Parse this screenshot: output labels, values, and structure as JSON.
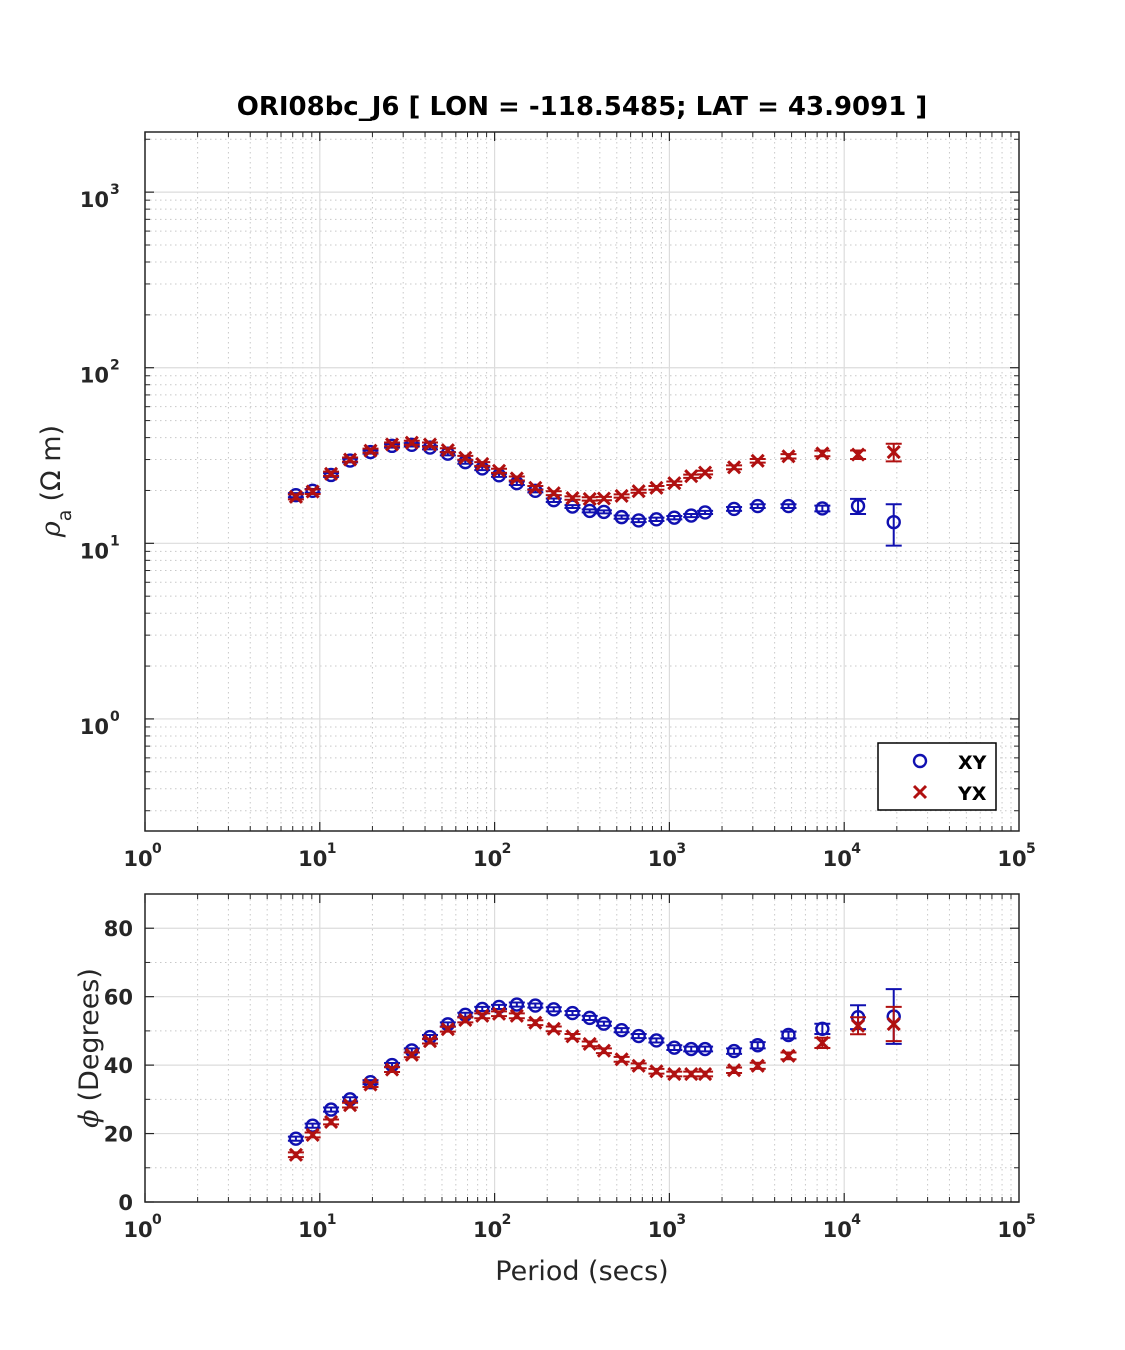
{
  "chart_data": [
    {
      "type": "scatter",
      "title": "ORI08bc_J6 [ LON = -118.5485; LAT = 43.9091 ]",
      "xlabel": "",
      "ylabel_symbol": "ρ",
      "ylabel_sub": "a",
      "ylabel_unit": "(Ω m)",
      "xscale": "log",
      "yscale": "log",
      "xlim": [
        1,
        100000
      ],
      "ylim": [
        0.23,
        2200
      ],
      "x_ticks": [
        {
          "base": "10",
          "exp": "0",
          "value": 1
        },
        {
          "base": "10",
          "exp": "1",
          "value": 10
        },
        {
          "base": "10",
          "exp": "2",
          "value": 100
        },
        {
          "base": "10",
          "exp": "3",
          "value": 1000
        },
        {
          "base": "10",
          "exp": "4",
          "value": 10000
        },
        {
          "base": "10",
          "exp": "5",
          "value": 100000
        }
      ],
      "y_ticks": [
        {
          "base": "10",
          "exp": "0",
          "value": 1
        },
        {
          "base": "10",
          "exp": "1",
          "value": 10
        },
        {
          "base": "10",
          "exp": "2",
          "value": 100
        },
        {
          "base": "10",
          "exp": "3",
          "value": 1000
        }
      ],
      "grid": true,
      "legend_position": "bottom-right",
      "series": [
        {
          "name": "XY",
          "marker": "circle",
          "color": "#1010b0",
          "x": [
            7.3,
            9.1,
            11.6,
            14.9,
            19.5,
            25.9,
            33.6,
            42.7,
            54,
            68,
            85,
            106,
            134,
            171,
            218,
            279,
            350,
            422,
            533,
            667,
            843,
            1067,
            1333,
            1600,
            2344,
            3200,
            4800,
            7500,
            12000,
            19200
          ],
          "y": [
            18.8,
            19.9,
            24.5,
            29.6,
            33.1,
            35.9,
            36.4,
            35.1,
            32.4,
            29,
            26.7,
            24.4,
            22,
            19.9,
            17.6,
            16.2,
            15.3,
            15.1,
            14.1,
            13.5,
            13.7,
            14,
            14.4,
            15,
            15.7,
            16.3,
            16.3,
            15.8,
            16.3,
            13.2
          ],
          "err": [
            0.5,
            0.5,
            0.6,
            0.7,
            0.7,
            0.8,
            0.8,
            0.8,
            0.7,
            0.6,
            0.6,
            0.5,
            0.5,
            0.4,
            0.4,
            0.3,
            0.3,
            0.3,
            0.3,
            0.3,
            0.3,
            0.3,
            0.3,
            0.3,
            0.4,
            0.4,
            0.4,
            0.6,
            1.6,
            3.5
          ]
        },
        {
          "name": "YX",
          "marker": "x",
          "color": "#b01010",
          "x": [
            7.3,
            9.1,
            11.6,
            14.9,
            19.5,
            25.9,
            33.6,
            42.7,
            54,
            68,
            85,
            106,
            134,
            171,
            218,
            279,
            350,
            422,
            533,
            667,
            843,
            1067,
            1333,
            1600,
            2344,
            3200,
            4800,
            7500,
            12000,
            19200
          ],
          "y": [
            18.4,
            19.7,
            24.9,
            30,
            33.7,
            36.6,
            37.4,
            36.5,
            33.9,
            30.7,
            28.3,
            25.9,
            23.4,
            20.7,
            19.3,
            18.1,
            17.9,
            18,
            18.6,
            19.8,
            20.7,
            22,
            24.1,
            25.3,
            27.1,
            29.5,
            31.3,
            32.5,
            32,
            33.1
          ],
          "err": [
            0.6,
            0.6,
            0.7,
            0.8,
            0.9,
            0.9,
            1,
            1,
            0.9,
            0.8,
            0.7,
            0.7,
            0.6,
            0.5,
            0.5,
            0.4,
            0.4,
            0.4,
            0.4,
            0.4,
            0.5,
            0.5,
            0.5,
            0.6,
            0.7,
            0.7,
            0.9,
            1.2,
            1.8,
            3.8
          ]
        }
      ]
    },
    {
      "type": "scatter",
      "title": "",
      "xlabel": "Period (secs)",
      "ylabel_symbol": "ϕ",
      "ylabel_unit": "(Degrees)",
      "xscale": "log",
      "yscale": "linear",
      "xlim": [
        1,
        100000
      ],
      "ylim": [
        0,
        90
      ],
      "x_ticks": [
        {
          "base": "10",
          "exp": "0",
          "value": 1
        },
        {
          "base": "10",
          "exp": "1",
          "value": 10
        },
        {
          "base": "10",
          "exp": "2",
          "value": 100
        },
        {
          "base": "10",
          "exp": "3",
          "value": 1000
        },
        {
          "base": "10",
          "exp": "4",
          "value": 10000
        },
        {
          "base": "10",
          "exp": "5",
          "value": 100000
        }
      ],
      "y_ticks": [
        {
          "label": "0",
          "value": 0
        },
        {
          "label": "20",
          "value": 20
        },
        {
          "label": "40",
          "value": 40
        },
        {
          "label": "60",
          "value": 60
        },
        {
          "label": "80",
          "value": 80
        }
      ],
      "grid": true,
      "series": [
        {
          "name": "XY",
          "marker": "circle",
          "color": "#1010b0",
          "x": [
            7.3,
            9.1,
            11.6,
            14.9,
            19.5,
            25.9,
            33.6,
            42.7,
            54,
            68,
            85,
            106,
            134,
            171,
            218,
            279,
            350,
            422,
            533,
            667,
            843,
            1067,
            1333,
            1600,
            2344,
            3200,
            4800,
            7500,
            12000,
            19200
          ],
          "y": [
            18.5,
            22.3,
            27,
            30,
            35,
            40,
            44.3,
            48.2,
            51.9,
            54.7,
            56.4,
            57,
            57.7,
            57.4,
            56.3,
            55.2,
            53.8,
            52.1,
            50.2,
            48.5,
            47.2,
            45.1,
            44.7,
            44.7,
            44.1,
            45.8,
            48.8,
            50.6,
            54,
            54.2
          ],
          "err": [
            0.6,
            0.6,
            0.6,
            0.6,
            0.6,
            0.6,
            0.6,
            0.6,
            0.6,
            0.6,
            0.6,
            0.6,
            0.6,
            0.6,
            0.6,
            0.6,
            0.6,
            0.6,
            0.6,
            0.6,
            0.6,
            0.7,
            0.7,
            0.7,
            0.8,
            0.9,
            1,
            1.5,
            3.5,
            8
          ]
        },
        {
          "name": "YX",
          "marker": "x",
          "color": "#b01010",
          "x": [
            7.3,
            9.1,
            11.6,
            14.9,
            19.5,
            25.9,
            33.6,
            42.7,
            54,
            68,
            85,
            106,
            134,
            171,
            218,
            279,
            350,
            422,
            533,
            667,
            843,
            1067,
            1333,
            1600,
            2344,
            3200,
            4800,
            7500,
            12000,
            19200
          ],
          "y": [
            13.8,
            19.6,
            23.4,
            28.3,
            34.3,
            38.7,
            43,
            47,
            50.5,
            53.2,
            54.4,
            55,
            54.4,
            52.4,
            50.6,
            48.4,
            46.2,
            44.2,
            41.7,
            39.8,
            38.2,
            37.4,
            37.4,
            37.4,
            38.5,
            39.8,
            42.7,
            46.5,
            51.5,
            52
          ],
          "err": [
            0.7,
            0.7,
            0.7,
            0.7,
            0.7,
            0.7,
            0.7,
            0.7,
            0.7,
            0.7,
            0.7,
            0.7,
            0.7,
            0.7,
            0.7,
            0.7,
            0.7,
            0.7,
            0.7,
            0.7,
            0.7,
            0.7,
            0.7,
            0.7,
            0.8,
            0.9,
            1,
            1.5,
            2.5,
            5
          ]
        }
      ]
    }
  ],
  "legend": [
    {
      "label": "XY",
      "marker": "circle",
      "color": "#1010b0"
    },
    {
      "label": "YX",
      "marker": "x",
      "color": "#b01010"
    }
  ],
  "colors": {
    "xy": "#1010b0",
    "yx": "#b01010",
    "axis": "#262626",
    "grid_major": "#dcdcdc",
    "grid_minor": "#c8c8c8"
  }
}
